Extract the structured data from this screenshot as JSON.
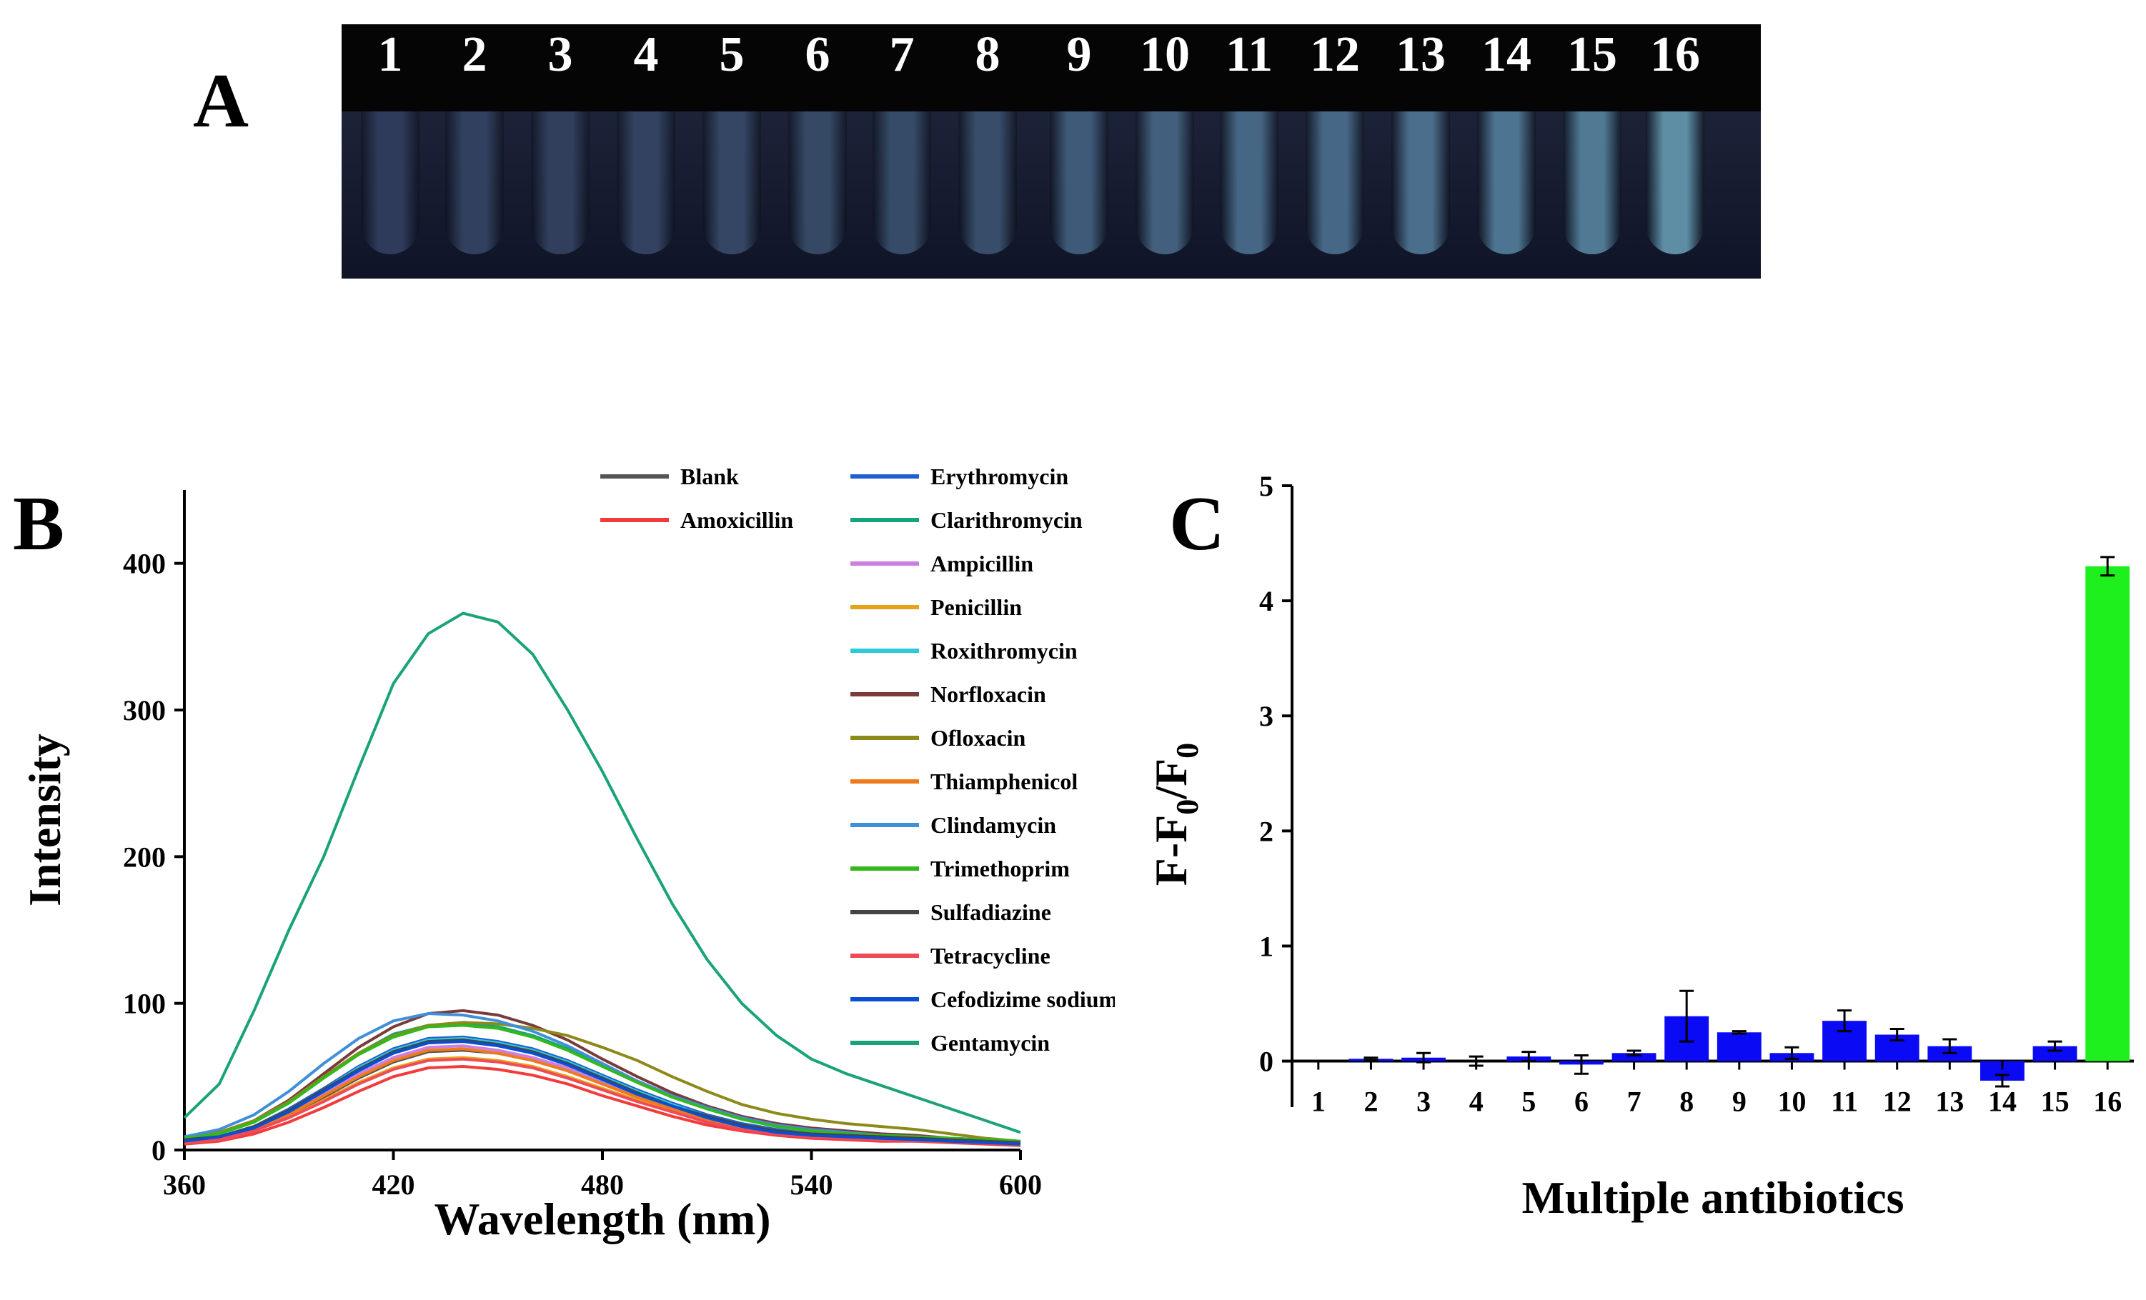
{
  "panels": {
    "a": {
      "letter": "A",
      "tube_labels": [
        "1",
        "2",
        "3",
        "4",
        "5",
        "6",
        "7",
        "8",
        "9",
        "10",
        "11",
        "12",
        "13",
        "14",
        "15",
        "16"
      ],
      "tube_colors": [
        "#2e3b5a",
        "#31405e",
        "#313f5d",
        "#324260",
        "#344663",
        "#354964",
        "#364b67",
        "#374d69",
        "#3f5a78",
        "#42607d",
        "#456684",
        "#466886",
        "#4a6e8b",
        "#4d7490",
        "#507994",
        "#5d8ea4"
      ]
    },
    "b": {
      "letter": "B",
      "chart_data": {
        "type": "line",
        "xlabel": "Wavelength (nm)",
        "ylabel": "Intensity",
        "xlim": [
          360,
          600
        ],
        "ylim": [
          0,
          450
        ],
        "xticks": [
          360,
          420,
          480,
          540,
          600
        ],
        "yticks": [
          0,
          100,
          200,
          300,
          400
        ],
        "x": [
          360,
          370,
          380,
          390,
          400,
          410,
          420,
          430,
          440,
          450,
          460,
          470,
          480,
          490,
          500,
          510,
          520,
          530,
          540,
          550,
          560,
          570,
          580,
          590,
          600
        ],
        "series": [
          {
            "name": "Blank",
            "color": "#555555",
            "values": [
              6,
              8,
              14,
              24,
              36,
              49,
              60,
              67,
              68,
              66,
              61,
              54,
              45,
              36,
              28,
              21,
              16,
              12,
              10,
              9,
              8,
              7,
              6,
              5,
              4
            ]
          },
          {
            "name": "Amoxicillin",
            "color": "#f23b3b",
            "values": [
              4,
              6,
              11,
              19,
              29,
              40,
              50,
              56,
              57,
              55,
              51,
              45,
              37,
              30,
              23,
              17,
              13,
              10,
              8,
              7,
              6,
              6,
              5,
              4,
              3
            ]
          },
          {
            "name": "Erythromycin",
            "color": "#1f5fd1",
            "values": [
              7,
              9,
              16,
              28,
              42,
              57,
              69,
              76,
              77,
              74,
              69,
              61,
              51,
              41,
              32,
              24,
              18,
              14,
              11,
              10,
              9,
              8,
              7,
              6,
              5
            ]
          },
          {
            "name": "Clarithromycin",
            "color": "#14a37a",
            "values": [
              8,
              11,
              19,
              33,
              50,
              66,
              79,
              85,
              86,
              84,
              78,
              69,
              58,
              47,
              37,
              29,
              22,
              17,
              14,
              12,
              10,
              9,
              8,
              7,
              6
            ]
          },
          {
            "name": "Ampicillin",
            "color": "#cc7fe0",
            "values": [
              6,
              8,
              15,
              26,
              39,
              52,
              63,
              70,
              71,
              68,
              63,
              56,
              46,
              37,
              29,
              22,
              16,
              12,
              10,
              9,
              8,
              7,
              6,
              5,
              4
            ]
          },
          {
            "name": "Penicillin",
            "color": "#e8a21a",
            "values": [
              5,
              7,
              13,
              22,
              34,
              46,
              56,
              62,
              63,
              61,
              57,
              50,
              42,
              34,
              27,
              20,
              15,
              12,
              10,
              9,
              8,
              7,
              6,
              5,
              4
            ]
          },
          {
            "name": "Roxithromycin",
            "color": "#2ec9d9",
            "values": [
              7,
              9,
              16,
              27,
              41,
              56,
              68,
              75,
              76,
              73,
              68,
              60,
              50,
              40,
              31,
              23,
              17,
              13,
              11,
              10,
              9,
              8,
              7,
              6,
              5
            ]
          },
          {
            "name": "Norfloxacin",
            "color": "#7a3b3b",
            "values": [
              8,
              12,
              20,
              34,
              52,
              70,
              84,
              93,
              95,
              92,
              85,
              75,
              62,
              50,
              39,
              30,
              23,
              18,
              15,
              13,
              11,
              10,
              8,
              7,
              5
            ]
          },
          {
            "name": "Ofloxacin",
            "color": "#8c8a1a",
            "values": [
              9,
              12,
              20,
              33,
              50,
              66,
              78,
              85,
              87,
              86,
              83,
              78,
              70,
              61,
              50,
              40,
              31,
              25,
              21,
              18,
              16,
              14,
              11,
              8,
              6
            ]
          },
          {
            "name": "Thiamphenicol",
            "color": "#f07a1a",
            "values": [
              6,
              8,
              14,
              24,
              37,
              50,
              61,
              68,
              69,
              66,
              61,
              54,
              45,
              36,
              28,
              21,
              16,
              12,
              10,
              9,
              8,
              7,
              6,
              5,
              4
            ]
          },
          {
            "name": "Clindamycin",
            "color": "#3f8fd9",
            "values": [
              9,
              14,
              24,
              40,
              59,
              76,
              88,
              93,
              92,
              88,
              81,
              71,
              59,
              47,
              37,
              29,
              22,
              17,
              14,
              12,
              10,
              9,
              8,
              7,
              6
            ]
          },
          {
            "name": "Trimethoprim",
            "color": "#33b81e",
            "values": [
              8,
              11,
              19,
              32,
              49,
              65,
              77,
              84,
              85,
              83,
              77,
              68,
              57,
              46,
              36,
              28,
              21,
              16,
              13,
              11,
              10,
              9,
              8,
              7,
              6
            ]
          },
          {
            "name": "Sulfadiazine",
            "color": "#444444",
            "values": [
              7,
              9,
              16,
              27,
              41,
              55,
              67,
              74,
              75,
              72,
              67,
              59,
              49,
              39,
              30,
              23,
              17,
              13,
              11,
              10,
              9,
              8,
              7,
              6,
              5
            ]
          },
          {
            "name": "Tetracycline",
            "color": "#f04a5a",
            "values": [
              5,
              7,
              13,
              22,
              33,
              45,
              55,
              61,
              62,
              60,
              56,
              49,
              41,
              33,
              26,
              19,
              14,
              11,
              9,
              8,
              7,
              6,
              6,
              5,
              4
            ]
          },
          {
            "name": "Cefodizime sodium",
            "color": "#0a4fd1",
            "values": [
              6,
              9,
              15,
              26,
              40,
              54,
              66,
              73,
              74,
              71,
              66,
              58,
              48,
              38,
              30,
              22,
              16,
              12,
              10,
              9,
              8,
              7,
              6,
              5,
              4
            ]
          },
          {
            "name": "Gentamycin",
            "color": "#1aa37a",
            "values": [
              22,
              45,
              95,
              150,
              200,
              260,
              318,
              352,
              366,
              360,
              338,
              300,
              258,
              212,
              168,
              130,
              100,
              78,
              62,
              52,
              44,
              36,
              28,
              20,
              12
            ]
          }
        ]
      }
    },
    "c": {
      "letter": "C",
      "chart_data": {
        "type": "bar",
        "xlabel": "Multiple antibiotics",
        "ylabel_main": "F-F",
        "ylabel_sub1": "0",
        "ylabel_mid": "/F",
        "ylabel_sub2": "0",
        "ylim": [
          -0.4,
          5
        ],
        "yticks": [
          0,
          1,
          2,
          3,
          4,
          5
        ],
        "categories": [
          "1",
          "2",
          "3",
          "4",
          "5",
          "6",
          "7",
          "8",
          "9",
          "10",
          "11",
          "12",
          "13",
          "14",
          "15",
          "16"
        ],
        "values": [
          0,
          0.02,
          0.03,
          0.0,
          0.04,
          -0.03,
          0.07,
          0.39,
          0.25,
          0.07,
          0.35,
          0.23,
          0.13,
          -0.17,
          0.13,
          4.3
        ],
        "errors": [
          0,
          0.01,
          0.04,
          0.04,
          0.04,
          0.08,
          0.02,
          0.22,
          0.01,
          0.05,
          0.09,
          0.05,
          0.06,
          0.05,
          0.04,
          0.08
        ],
        "colors": [
          "#0a0af5",
          "#0a0af5",
          "#0a0af5",
          "#0a0af5",
          "#0a0af5",
          "#0a0af5",
          "#0a0af5",
          "#0a0af5",
          "#0a0af5",
          "#0a0af5",
          "#0a0af5",
          "#0a0af5",
          "#0a0af5",
          "#0a0af5",
          "#0a0af5",
          "#1ef01e"
        ]
      }
    }
  }
}
